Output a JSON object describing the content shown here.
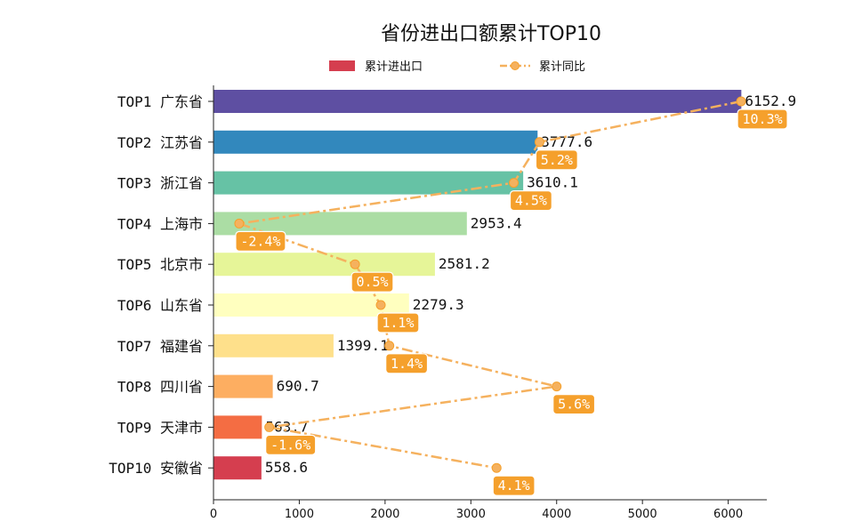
{
  "chart_data": {
    "type": "bar",
    "orientation": "horizontal",
    "title": "省份进出口额累计TOP10",
    "legend": {
      "bar_label": "累计进出口",
      "line_label": "累计同比",
      "placement": "top-center"
    },
    "categories": [
      "TOP1 广东省",
      "TOP2 江苏省",
      "TOP3 浙江省",
      "TOP4 上海市",
      "TOP5 北京市",
      "TOP6 山东省",
      "TOP7 福建省",
      "TOP8 四川省",
      "TOP9 天津市",
      "TOP10 安徽省"
    ],
    "values": [
      6152.9,
      3777.6,
      3610.1,
      2953.4,
      2581.2,
      2279.3,
      1399.1,
      690.7,
      563.7,
      558.6
    ],
    "value_labels": [
      "6152.9",
      "3777.6",
      "3610.1",
      "2953.4",
      "2581.2",
      "2279.3",
      "1399.1",
      "690.7",
      "563.7",
      "558.6"
    ],
    "bar_colors": [
      "#5e4fa2",
      "#3288bd",
      "#66c2a5",
      "#abdda4",
      "#e6f598",
      "#ffffbf",
      "#fee08b",
      "#fdae61",
      "#f46d43",
      "#d53e4f"
    ],
    "yoy_growth": [
      10.3,
      5.2,
      4.5,
      -2.4,
      0.5,
      1.1,
      1.4,
      5.6,
      -1.6,
      4.1
    ],
    "yoy_labels": [
      "10.3%",
      "5.2%",
      "4.5%",
      "-2.4%",
      "0.5%",
      "1.1%",
      "1.4%",
      "5.6%",
      "-1.6%",
      "4.1%"
    ],
    "yoy_line_x": [
      6150,
      3800,
      3500,
      300,
      1650,
      1950,
      2050,
      4000,
      650,
      3300
    ],
    "line_color": "#f5b15e",
    "box_color": "#f5a02c",
    "x_ticks": [
      0,
      1000,
      2000,
      3000,
      4000,
      5000,
      6000
    ],
    "xlim": [
      0,
      6450
    ],
    "xlabel": "",
    "ylabel": ""
  }
}
